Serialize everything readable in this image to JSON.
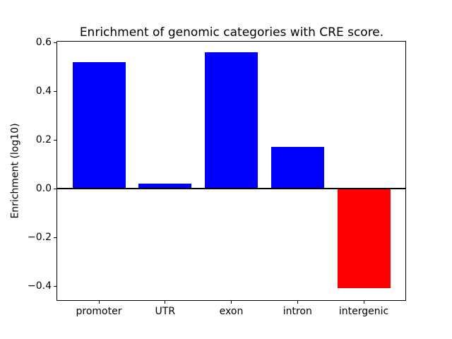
{
  "chart_data": {
    "type": "bar",
    "title": "Enrichment of genomic categories with CRE score.",
    "xlabel": "",
    "ylabel": "Enrichment (log10)",
    "categories": [
      "promoter",
      "UTR",
      "exon",
      "intron",
      "intergenic"
    ],
    "values": [
      0.52,
      0.02,
      0.56,
      0.17,
      -0.41
    ],
    "bar_colors": [
      "#0000ff",
      "#0000ff",
      "#0000ff",
      "#0000ff",
      "#ff0000"
    ],
    "positive_color": "#0000ff",
    "negative_color": "#ff0000",
    "yticks": [
      -0.4,
      -0.2,
      0.0,
      0.2,
      0.4,
      0.6
    ],
    "ytick_labels": [
      "−0.4",
      "−0.2",
      "0.0",
      "0.2",
      "0.4",
      "0.6"
    ],
    "ylim": [
      -0.461,
      0.606
    ],
    "xlim": [
      -0.64,
      4.64
    ],
    "bar_width_fraction": 0.8,
    "grid": false,
    "legend": false,
    "zero_line": true,
    "background_color": "#ffffff",
    "spine_color": "#000000"
  }
}
